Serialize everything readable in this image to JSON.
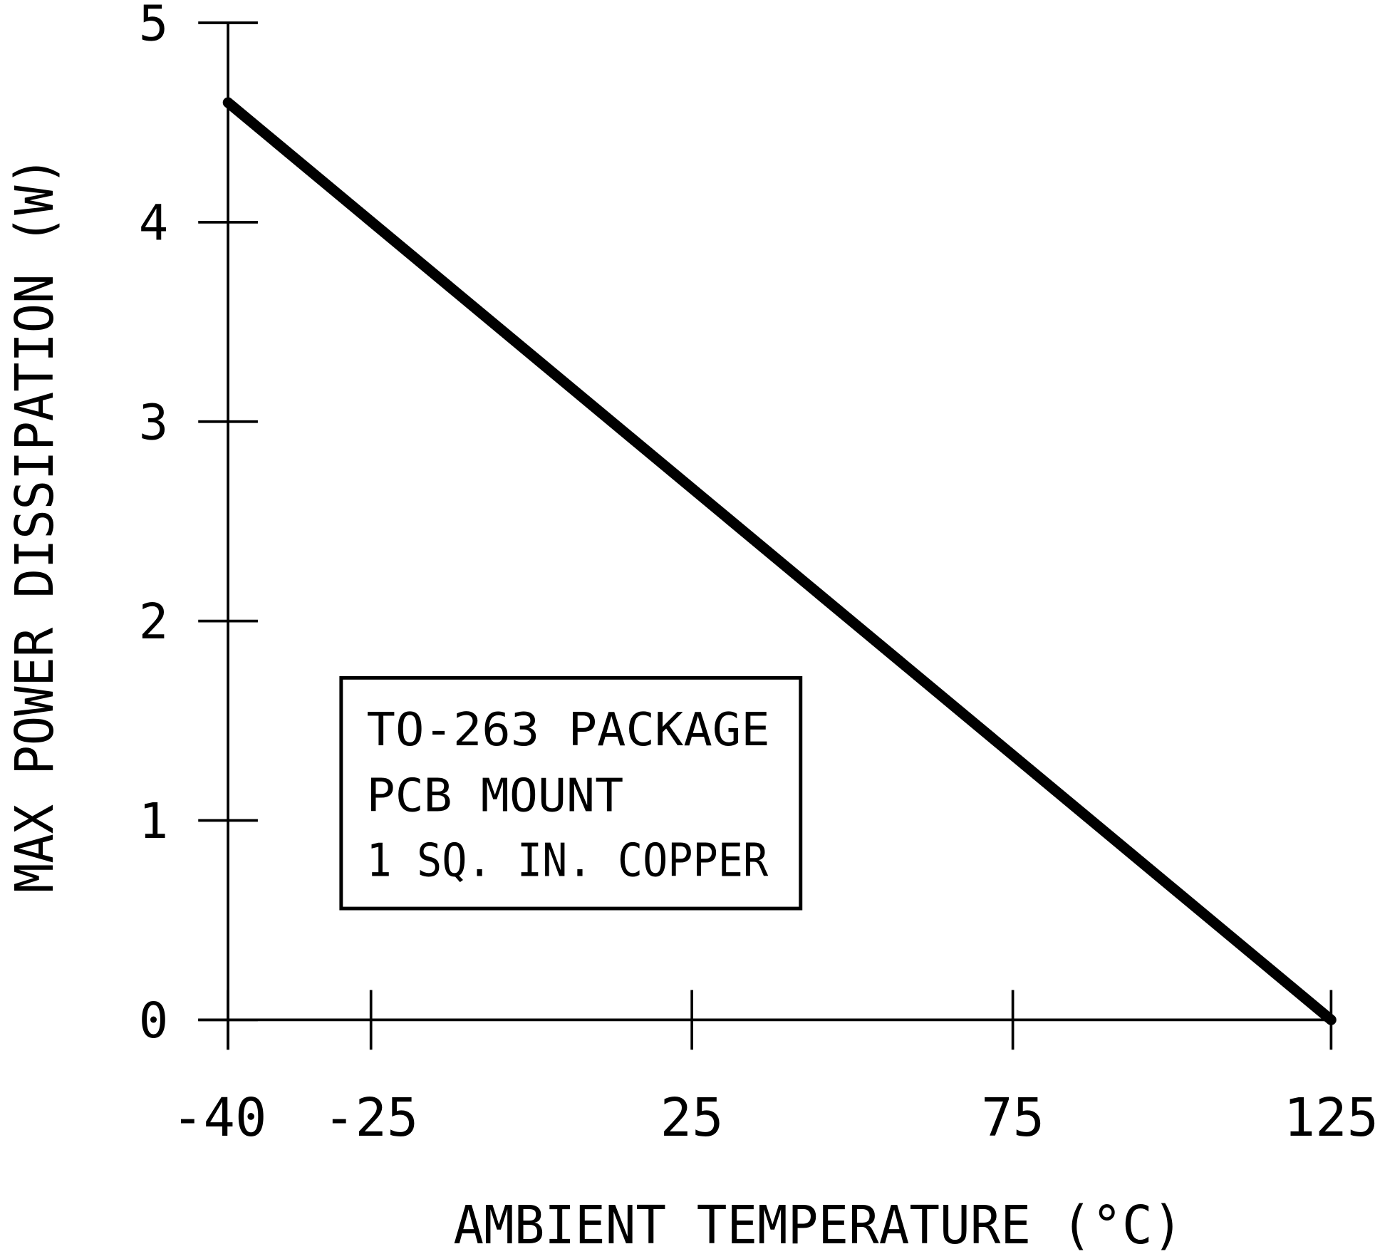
{
  "chart_data": {
    "type": "line",
    "title": "",
    "xlabel": "AMBIENT TEMPERATURE (°C)",
    "ylabel": "MAX POWER DISSIPATION (W)",
    "xlim": [
      -40,
      125
    ],
    "ylim": [
      0,
      5
    ],
    "x_ticks": [
      -40,
      -25,
      25,
      75,
      125
    ],
    "x_tick_labels": [
      "-40",
      "-25",
      "25",
      "75",
      "125"
    ],
    "y_ticks": [
      0,
      1,
      2,
      3,
      4,
      5
    ],
    "y_tick_labels": [
      "0",
      "1",
      "2",
      "3",
      "4",
      "5"
    ],
    "grid": false,
    "series": [
      {
        "x": [
          -40,
          125
        ],
        "y": [
          4.6,
          0
        ],
        "color": "#000000"
      }
    ],
    "annotation": {
      "lines": [
        "TO-263 PACKAGE",
        "PCB MOUNT",
        "1 SQ. IN. COPPER"
      ]
    }
  }
}
